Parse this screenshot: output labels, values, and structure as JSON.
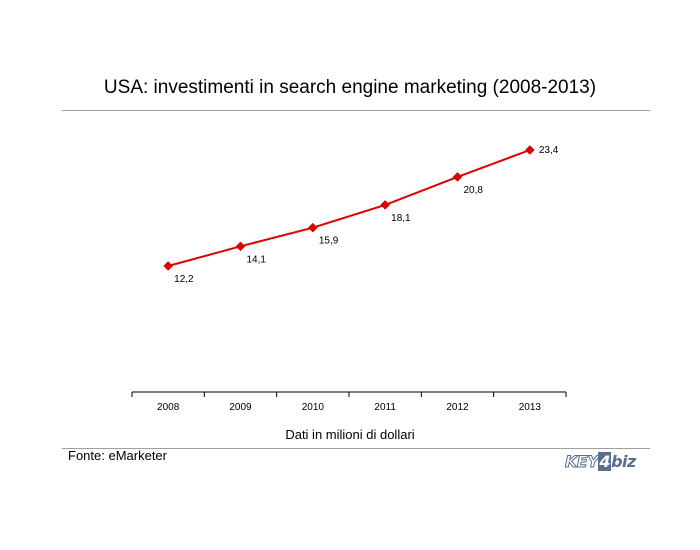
{
  "chart_data": {
    "type": "line",
    "title": "USA: investimenti in search engine marketing (2008-2013)",
    "categories": [
      "2008",
      "2009",
      "2010",
      "2011",
      "2012",
      "2013"
    ],
    "values": [
      12.2,
      14.1,
      15.9,
      18.1,
      20.8,
      23.4
    ],
    "value_labels": [
      "12,2",
      "14,1",
      "15,9",
      "18,1",
      "20,8",
      "23,4"
    ],
    "xlabel": "Dati in milioni di dollari",
    "ylabel": "",
    "grid": false,
    "legend": "none",
    "line_color": "#e00000"
  },
  "source": "Fonte: eMarketer",
  "logo": {
    "part1": "KEY",
    "part2": "4",
    "part3": "biz",
    "color": "#5a6f8e"
  }
}
